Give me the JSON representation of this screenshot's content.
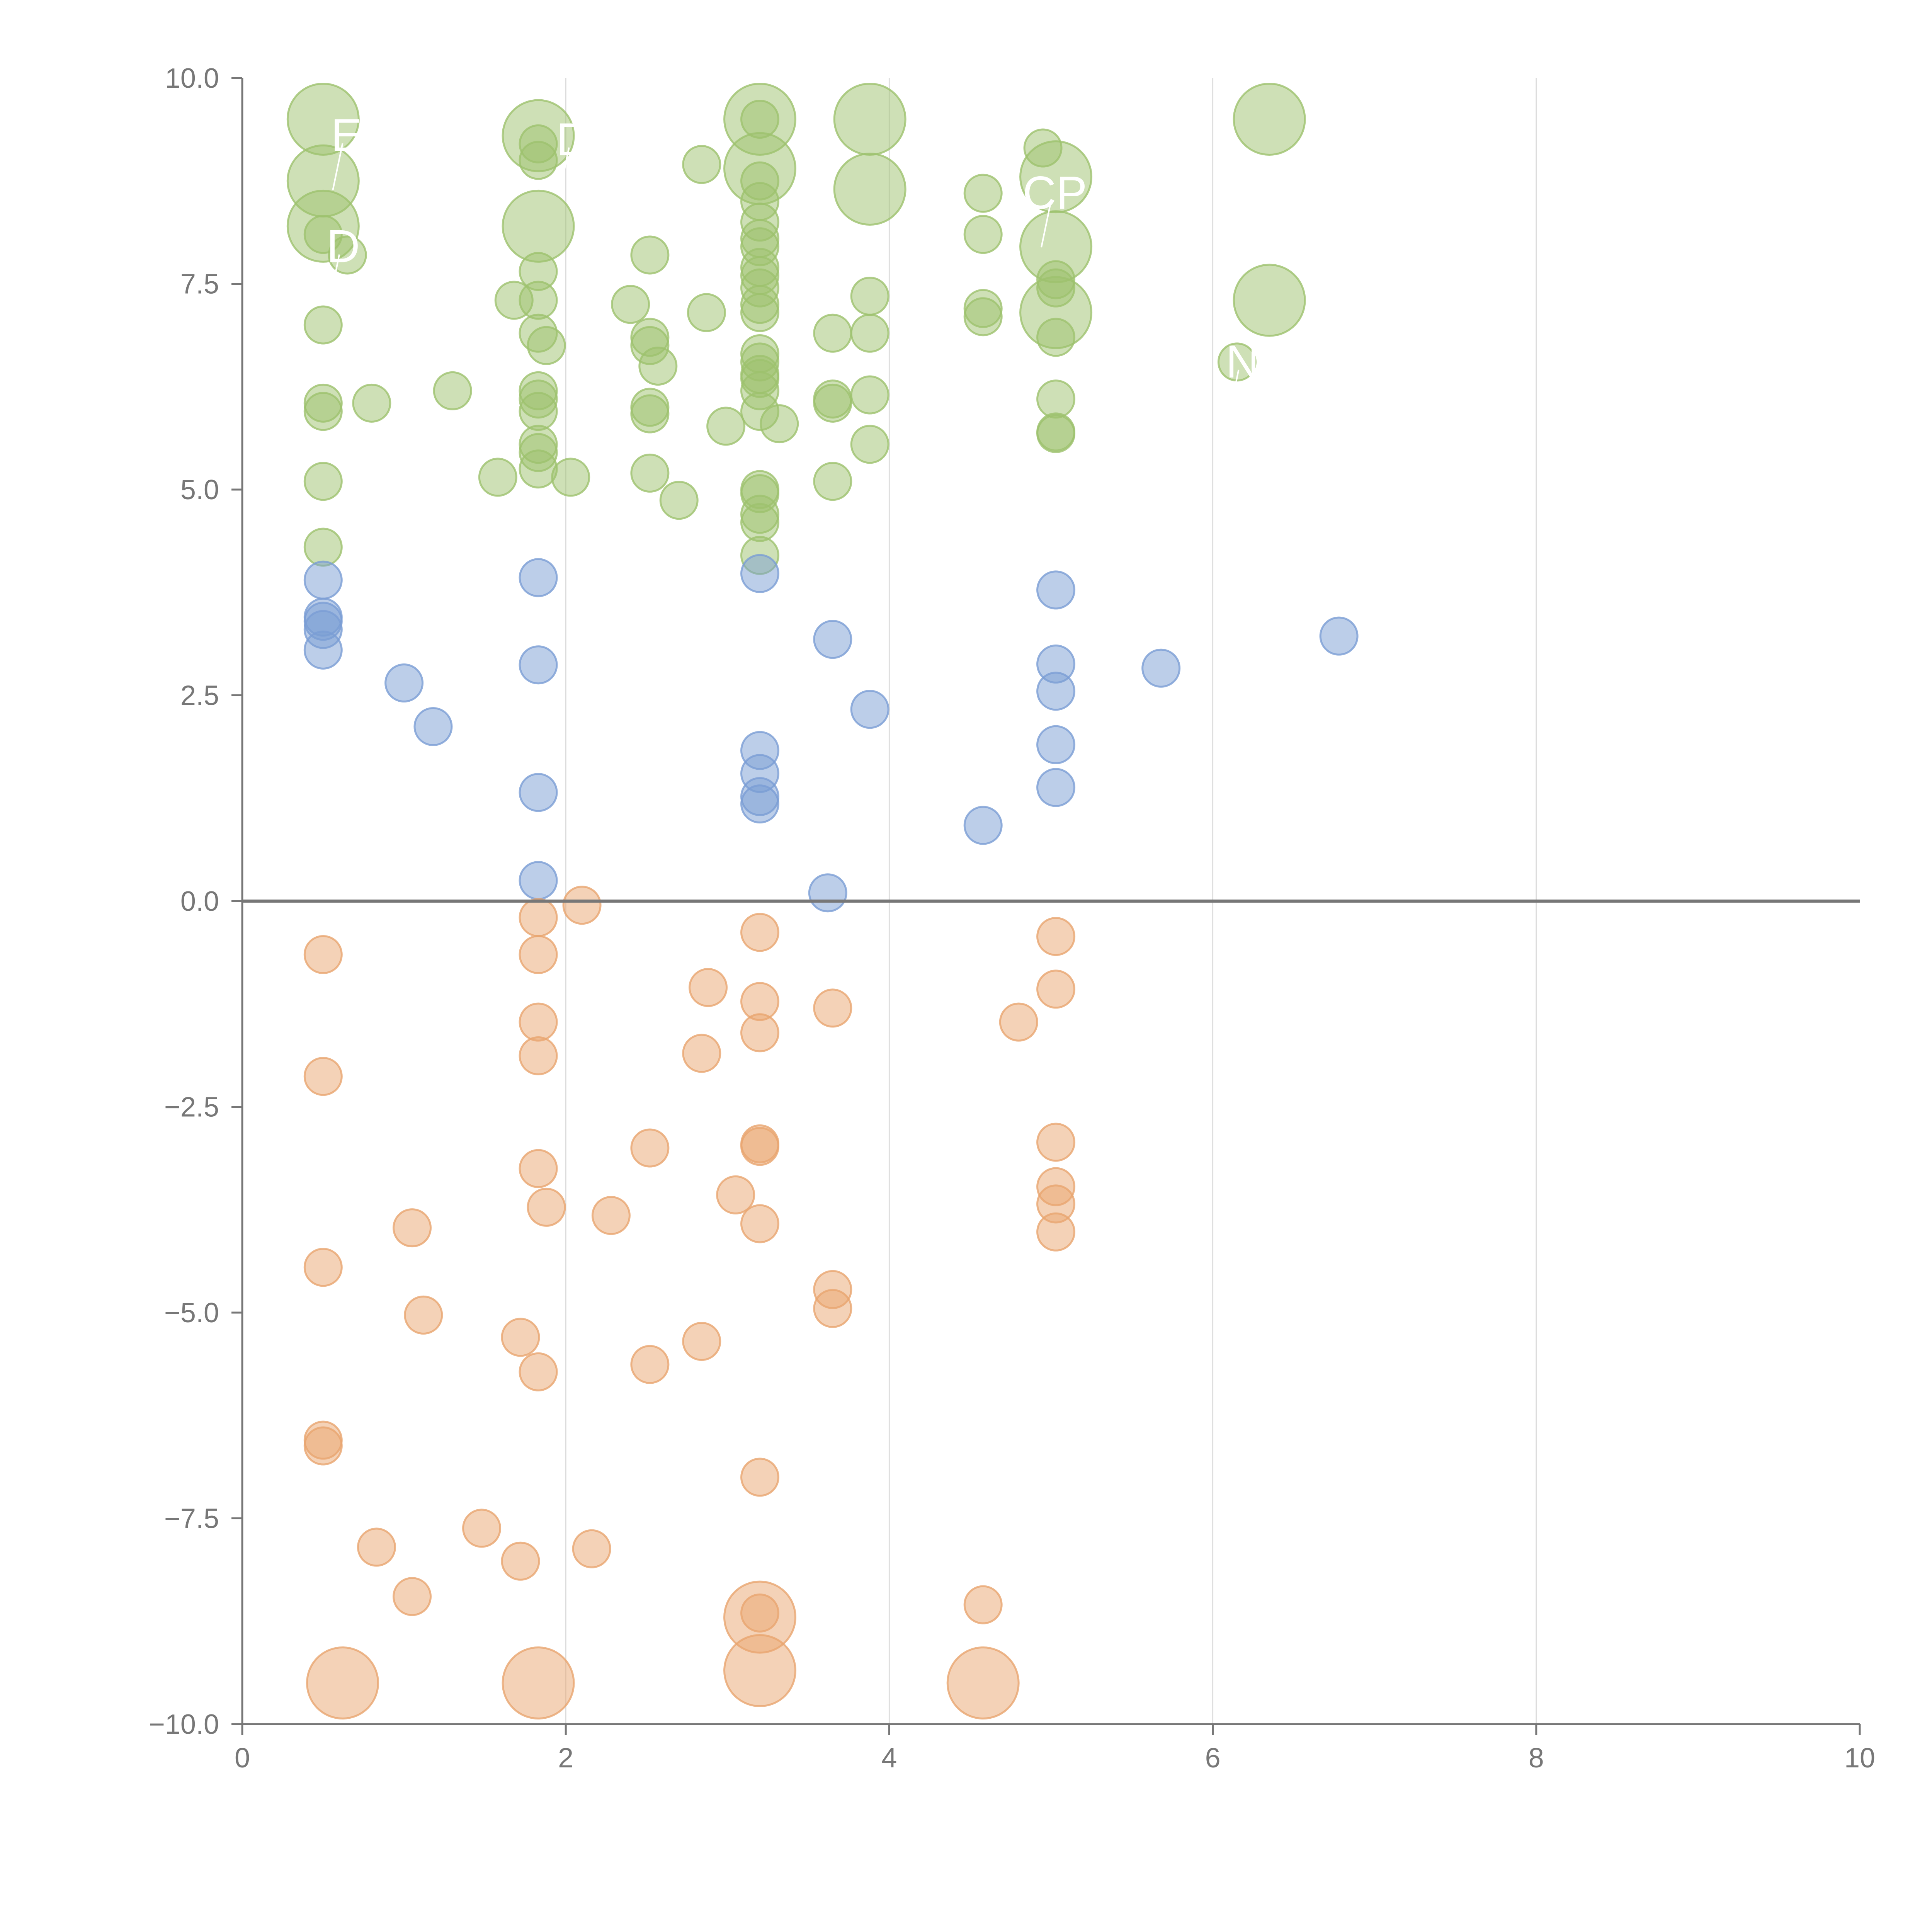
{
  "chart_data": {
    "type": "scatter",
    "title": "",
    "xlabel": "",
    "ylabel": "",
    "xlim": [
      0,
      10
    ],
    "ylim": [
      -10,
      10
    ],
    "x_ticks": [
      "0",
      "2",
      "4",
      "6",
      "8",
      "10"
    ],
    "y_ticks": [
      "10.0",
      "7.5",
      "5.0",
      "2.5",
      "0.0",
      "−2.5",
      "−5.0",
      "−7.5",
      "−10.0"
    ],
    "x_gridlines": [
      2,
      4,
      6,
      8
    ],
    "reference_line_y": 0,
    "colors": {
      "green": "#9dc26e",
      "blue": "#7a9ed4",
      "orange": "#e9a56f"
    },
    "series": [
      {
        "name": "green",
        "color": "#9dc26e",
        "points": [
          {
            "x": 0.5,
            "y": 9.5,
            "r": "large"
          },
          {
            "x": 0.5,
            "y": 8.75,
            "r": "large"
          },
          {
            "x": 0.5,
            "y": 8.2,
            "r": "large"
          },
          {
            "x": 0.5,
            "y": 8.1
          },
          {
            "x": 0.65,
            "y": 7.85
          },
          {
            "x": 0.5,
            "y": 7.0
          },
          {
            "x": 0.5,
            "y": 6.05
          },
          {
            "x": 0.5,
            "y": 5.95
          },
          {
            "x": 0.8,
            "y": 6.05
          },
          {
            "x": 1.3,
            "y": 6.2
          },
          {
            "x": 0.5,
            "y": 5.1
          },
          {
            "x": 0.5,
            "y": 4.3
          },
          {
            "x": 1.83,
            "y": 9.3,
            "r": "large"
          },
          {
            "x": 1.83,
            "y": 9.2
          },
          {
            "x": 1.83,
            "y": 9.0
          },
          {
            "x": 1.83,
            "y": 8.2,
            "r": "large"
          },
          {
            "x": 1.83,
            "y": 7.65
          },
          {
            "x": 1.83,
            "y": 7.3
          },
          {
            "x": 1.68,
            "y": 7.3
          },
          {
            "x": 1.83,
            "y": 6.9
          },
          {
            "x": 1.88,
            "y": 6.75
          },
          {
            "x": 1.83,
            "y": 6.2
          },
          {
            "x": 1.83,
            "y": 6.1
          },
          {
            "x": 1.83,
            "y": 5.95
          },
          {
            "x": 1.83,
            "y": 5.55
          },
          {
            "x": 1.83,
            "y": 5.45
          },
          {
            "x": 1.83,
            "y": 5.25
          },
          {
            "x": 1.58,
            "y": 5.15
          },
          {
            "x": 2.03,
            "y": 5.15
          },
          {
            "x": 2.4,
            "y": 7.25
          },
          {
            "x": 2.52,
            "y": 7.85
          },
          {
            "x": 2.52,
            "y": 6.85
          },
          {
            "x": 2.52,
            "y": 6.75
          },
          {
            "x": 2.57,
            "y": 6.5
          },
          {
            "x": 2.52,
            "y": 6.0
          },
          {
            "x": 2.52,
            "y": 5.92
          },
          {
            "x": 2.52,
            "y": 5.2
          },
          {
            "x": 2.7,
            "y": 4.87
          },
          {
            "x": 2.84,
            "y": 8.95
          },
          {
            "x": 2.87,
            "y": 7.15
          },
          {
            "x": 2.99,
            "y": 5.77
          },
          {
            "x": 3.2,
            "y": 9.5,
            "r": "large"
          },
          {
            "x": 3.2,
            "y": 9.5
          },
          {
            "x": 3.2,
            "y": 8.9,
            "r": "large"
          },
          {
            "x": 3.2,
            "y": 8.75
          },
          {
            "x": 3.2,
            "y": 8.5
          },
          {
            "x": 3.2,
            "y": 8.25
          },
          {
            "x": 3.2,
            "y": 8.05
          },
          {
            "x": 3.2,
            "y": 7.95
          },
          {
            "x": 3.2,
            "y": 7.7
          },
          {
            "x": 3.2,
            "y": 7.6
          },
          {
            "x": 3.2,
            "y": 7.45
          },
          {
            "x": 3.2,
            "y": 7.25
          },
          {
            "x": 3.2,
            "y": 7.15
          },
          {
            "x": 3.2,
            "y": 6.65
          },
          {
            "x": 3.2,
            "y": 6.55
          },
          {
            "x": 3.2,
            "y": 6.4
          },
          {
            "x": 3.2,
            "y": 6.35
          },
          {
            "x": 3.2,
            "y": 6.2
          },
          {
            "x": 3.2,
            "y": 5.95
          },
          {
            "x": 3.32,
            "y": 5.8
          },
          {
            "x": 3.2,
            "y": 5.0
          },
          {
            "x": 3.2,
            "y": 4.95
          },
          {
            "x": 3.2,
            "y": 4.7
          },
          {
            "x": 3.2,
            "y": 4.6
          },
          {
            "x": 3.2,
            "y": 4.2
          },
          {
            "x": 3.65,
            "y": 6.9
          },
          {
            "x": 3.65,
            "y": 6.1
          },
          {
            "x": 3.65,
            "y": 6.05
          },
          {
            "x": 3.65,
            "y": 5.1
          },
          {
            "x": 3.88,
            "y": 9.5,
            "r": "large"
          },
          {
            "x": 3.88,
            "y": 8.65,
            "r": "large"
          },
          {
            "x": 3.88,
            "y": 7.35
          },
          {
            "x": 3.88,
            "y": 6.9
          },
          {
            "x": 3.88,
            "y": 6.15
          },
          {
            "x": 3.88,
            "y": 5.55
          },
          {
            "x": 4.58,
            "y": 8.6
          },
          {
            "x": 4.58,
            "y": 8.1
          },
          {
            "x": 4.58,
            "y": 7.2
          },
          {
            "x": 4.58,
            "y": 7.1
          },
          {
            "x": 4.95,
            "y": 9.15
          },
          {
            "x": 5.03,
            "y": 8.8,
            "r": "large"
          },
          {
            "x": 5.03,
            "y": 7.95,
            "r": "large"
          },
          {
            "x": 5.03,
            "y": 7.55
          },
          {
            "x": 5.03,
            "y": 7.45
          },
          {
            "x": 5.03,
            "y": 7.15,
            "r": "large"
          },
          {
            "x": 5.03,
            "y": 6.85
          },
          {
            "x": 5.03,
            "y": 6.1
          },
          {
            "x": 5.03,
            "y": 5.7
          },
          {
            "x": 5.03,
            "y": 5.68
          },
          {
            "x": 6.15,
            "y": 6.55
          },
          {
            "x": 6.35,
            "y": 9.5,
            "r": "large"
          },
          {
            "x": 6.35,
            "y": 7.3,
            "r": "large"
          }
        ]
      },
      {
        "name": "blue",
        "color": "#7a9ed4",
        "points": [
          {
            "x": 0.5,
            "y": 3.9
          },
          {
            "x": 0.5,
            "y": 3.45
          },
          {
            "x": 0.5,
            "y": 3.4
          },
          {
            "x": 0.5,
            "y": 3.3
          },
          {
            "x": 0.5,
            "y": 3.05
          },
          {
            "x": 1.0,
            "y": 2.65
          },
          {
            "x": 1.18,
            "y": 2.12
          },
          {
            "x": 1.83,
            "y": 3.93
          },
          {
            "x": 1.83,
            "y": 2.87
          },
          {
            "x": 1.83,
            "y": 1.32
          },
          {
            "x": 1.83,
            "y": 0.25
          },
          {
            "x": 3.2,
            "y": 3.98
          },
          {
            "x": 3.2,
            "y": 1.83
          },
          {
            "x": 3.2,
            "y": 1.55
          },
          {
            "x": 3.2,
            "y": 1.27
          },
          {
            "x": 3.2,
            "y": 1.18
          },
          {
            "x": 3.62,
            "y": 0.1
          },
          {
            "x": 3.65,
            "y": 3.18
          },
          {
            "x": 3.88,
            "y": 2.33
          },
          {
            "x": 4.58,
            "y": 0.92
          },
          {
            "x": 5.03,
            "y": 3.78
          },
          {
            "x": 5.03,
            "y": 2.88
          },
          {
            "x": 5.03,
            "y": 2.55
          },
          {
            "x": 5.03,
            "y": 1.9
          },
          {
            "x": 5.03,
            "y": 1.38
          },
          {
            "x": 5.68,
            "y": 2.83
          },
          {
            "x": 6.78,
            "y": 3.22
          }
        ]
      },
      {
        "name": "orange",
        "color": "#e9a56f",
        "points": [
          {
            "x": 0.5,
            "y": -0.65
          },
          {
            "x": 0.5,
            "y": -2.13
          },
          {
            "x": 0.5,
            "y": -4.45
          },
          {
            "x": 0.5,
            "y": -6.55
          },
          {
            "x": 0.5,
            "y": -6.62
          },
          {
            "x": 0.62,
            "y": -9.5,
            "r": "large"
          },
          {
            "x": 0.83,
            "y": -7.85
          },
          {
            "x": 1.05,
            "y": -3.97
          },
          {
            "x": 1.05,
            "y": -8.45
          },
          {
            "x": 1.12,
            "y": -5.03
          },
          {
            "x": 1.48,
            "y": -7.62
          },
          {
            "x": 1.72,
            "y": -5.3
          },
          {
            "x": 1.72,
            "y": -8.02
          },
          {
            "x": 1.83,
            "y": -0.2
          },
          {
            "x": 1.83,
            "y": -0.65
          },
          {
            "x": 1.83,
            "y": -1.47
          },
          {
            "x": 1.83,
            "y": -1.88
          },
          {
            "x": 1.83,
            "y": -3.25
          },
          {
            "x": 1.88,
            "y": -3.72
          },
          {
            "x": 1.83,
            "y": -5.72
          },
          {
            "x": 1.83,
            "y": -9.5,
            "r": "large"
          },
          {
            "x": 2.1,
            "y": -0.05
          },
          {
            "x": 2.16,
            "y": -7.87
          },
          {
            "x": 2.28,
            "y": -3.82
          },
          {
            "x": 2.52,
            "y": -3.0
          },
          {
            "x": 2.52,
            "y": -5.63
          },
          {
            "x": 2.84,
            "y": -1.85
          },
          {
            "x": 2.84,
            "y": -5.35
          },
          {
            "x": 2.88,
            "y": -1.05
          },
          {
            "x": 3.05,
            "y": -3.57
          },
          {
            "x": 3.2,
            "y": -0.38
          },
          {
            "x": 3.2,
            "y": -1.22
          },
          {
            "x": 3.2,
            "y": -1.6
          },
          {
            "x": 3.2,
            "y": -2.95
          },
          {
            "x": 3.2,
            "y": -2.98
          },
          {
            "x": 3.2,
            "y": -3.92
          },
          {
            "x": 3.2,
            "y": -7.0
          },
          {
            "x": 3.2,
            "y": -8.65
          },
          {
            "x": 3.2,
            "y": -8.7,
            "r": "large"
          },
          {
            "x": 3.2,
            "y": -9.35,
            "r": "large"
          },
          {
            "x": 3.65,
            "y": -1.3
          },
          {
            "x": 3.65,
            "y": -4.72
          },
          {
            "x": 3.65,
            "y": -4.95
          },
          {
            "x": 4.58,
            "y": -8.55
          },
          {
            "x": 4.58,
            "y": -9.5,
            "r": "large"
          },
          {
            "x": 4.8,
            "y": -1.47
          },
          {
            "x": 5.03,
            "y": -0.43
          },
          {
            "x": 5.03,
            "y": -1.07
          },
          {
            "x": 5.03,
            "y": -2.93
          },
          {
            "x": 5.03,
            "y": -3.47
          },
          {
            "x": 5.03,
            "y": -3.68
          },
          {
            "x": 5.03,
            "y": -4.02
          }
        ]
      }
    ],
    "annotations": [
      {
        "text": "E",
        "x": 0.62,
        "y": 9.3
      },
      {
        "text": "D",
        "x": 0.6,
        "y": 7.95
      },
      {
        "text": "D",
        "x": 2.02,
        "y": 9.25
      },
      {
        "text": "CP",
        "x": 5.0,
        "y": 8.6
      },
      {
        "text": "N",
        "x": 6.16,
        "y": 6.55
      }
    ]
  }
}
